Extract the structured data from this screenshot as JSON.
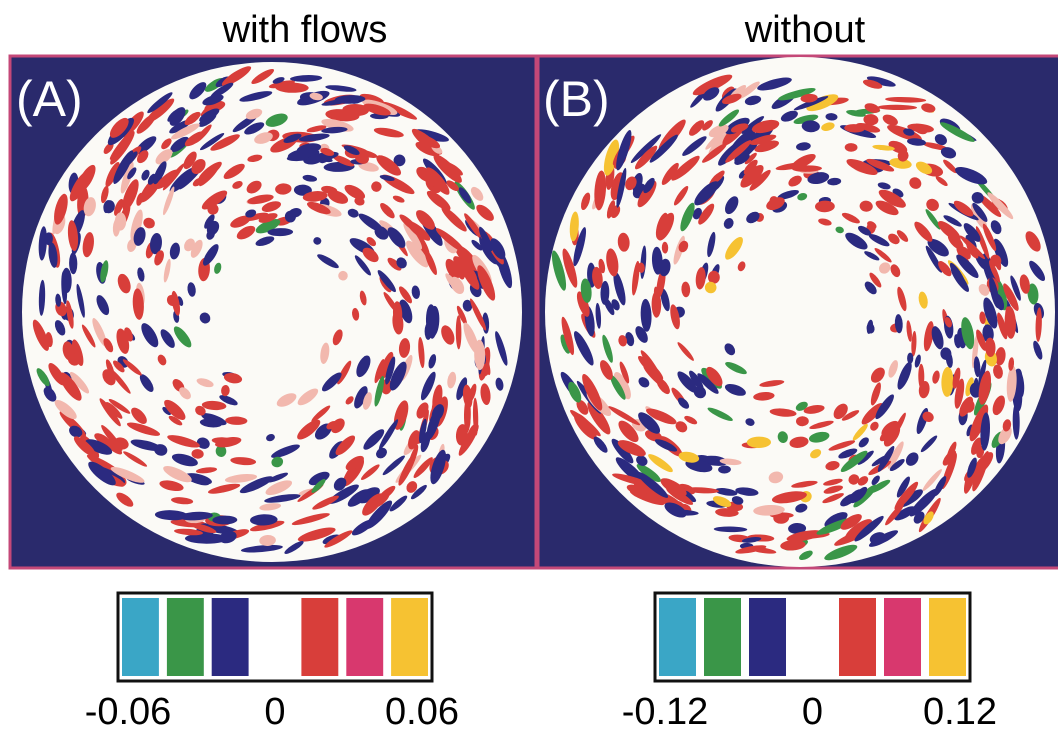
{
  "panels": [
    {
      "title": "with flows",
      "label": "(A)",
      "colorbar": {
        "colors": [
          "#3aa6c6",
          "#3a9648",
          "#2b2a80",
          "#ffffff",
          "#d83e3a",
          "#d8386e",
          "#f6c232"
        ],
        "ticks": [
          -0.06,
          0,
          0.06
        ]
      }
    },
    {
      "title": "without",
      "label": "(B)",
      "colorbar": {
        "colors": [
          "#3aa6c6",
          "#3a9648",
          "#2b2a80",
          "#ffffff",
          "#d83e3a",
          "#d8386e",
          "#f6c232"
        ],
        "ticks": [
          -0.12,
          0,
          0.12
        ]
      }
    }
  ]
}
